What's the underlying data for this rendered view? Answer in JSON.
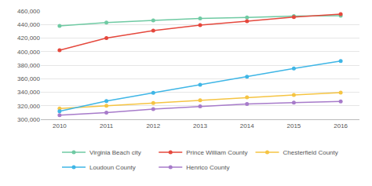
{
  "chart_data": {
    "type": "line",
    "x": [
      2010,
      2011,
      2012,
      2013,
      2014,
      2015,
      2016
    ],
    "xlim": [
      2009.6,
      2016.4
    ],
    "xticks": [
      2010,
      2011,
      2012,
      2013,
      2014,
      2015,
      2016
    ],
    "ylim": [
      300000,
      460000
    ],
    "yticks": [
      {
        "value": 300000,
        "label": "300,000"
      },
      {
        "value": 320000,
        "label": "320,000"
      },
      {
        "value": 340000,
        "label": "340,000"
      },
      {
        "value": 360000,
        "label": "360,000"
      },
      {
        "value": 380000,
        "label": "380,000"
      },
      {
        "value": 400000,
        "label": "400,000"
      },
      {
        "value": 420000,
        "label": "420,000"
      },
      {
        "value": 440000,
        "label": "440,000"
      },
      {
        "value": 460000,
        "label": "460,000"
      }
    ],
    "grid": true,
    "legend": "bottom",
    "marker": "circle",
    "series": [
      {
        "name": "Virginia Beach city",
        "color": "#6fcaa3",
        "values": [
          438000,
          443000,
          446000,
          449000,
          450500,
          452500,
          453000
        ]
      },
      {
        "name": "Prince William County",
        "color": "#e5483d",
        "values": [
          402000,
          420000,
          431000,
          439000,
          445000,
          451000,
          455500
        ]
      },
      {
        "name": "Chesterfield County",
        "color": "#f5c443",
        "values": [
          316000,
          320000,
          324000,
          328000,
          332500,
          336000,
          339500
        ]
      },
      {
        "name": "Loudoun County",
        "color": "#3fb6e6",
        "values": [
          312000,
          327000,
          339000,
          351000,
          363000,
          375000,
          386000
        ]
      },
      {
        "name": "Henrico County",
        "color": "#a77bca",
        "values": [
          306000,
          310000,
          315000,
          319000,
          322500,
          324500,
          326500
        ]
      }
    ]
  }
}
